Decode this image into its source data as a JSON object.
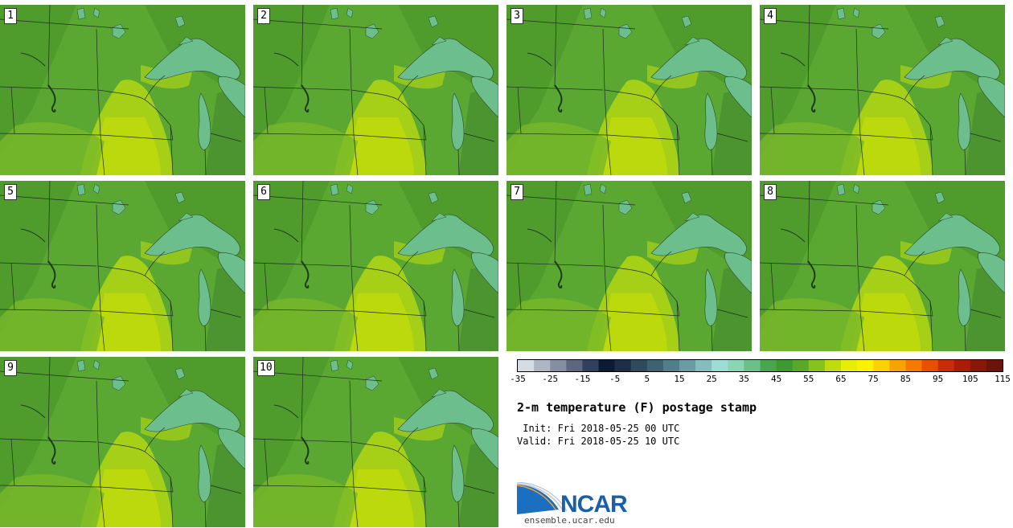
{
  "stamps": [
    {
      "label": "1"
    },
    {
      "label": "2"
    },
    {
      "label": "3"
    },
    {
      "label": "4"
    },
    {
      "label": "5"
    },
    {
      "label": "6"
    },
    {
      "label": "7"
    },
    {
      "label": "8"
    },
    {
      "label": "9"
    },
    {
      "label": "10"
    }
  ],
  "colorbar": {
    "colors": [
      "#d6dce4",
      "#aeb6c4",
      "#858fa2",
      "#5d6880",
      "#31405c",
      "#0d1a33",
      "#1d2f46",
      "#2e4a5c",
      "#3e6272",
      "#517e8a",
      "#6b9ca4",
      "#86bcbe",
      "#9edcd6",
      "#88d6b4",
      "#6cbf88",
      "#4aa64e",
      "#3d9a30",
      "#5aa82a",
      "#86c31e",
      "#bedc0e",
      "#e6ee08",
      "#fbf200",
      "#fbd200",
      "#f8a400",
      "#f47a00",
      "#e85000",
      "#c82c08",
      "#a81c08",
      "#8a1808",
      "#6a140a"
    ],
    "tick_labels": [
      "-35",
      "-25",
      "-15",
      "-5",
      "5",
      "15",
      "25",
      "35",
      "45",
      "55",
      "65",
      "75",
      "85",
      "95",
      "105",
      "115"
    ]
  },
  "title": "2-m temperature (F) postage stamp",
  "init_text": " Init: Fri 2018-05-25 00 UTC",
  "valid_text": "Valid: Fri 2018-05-25 10 UTC",
  "logo_text": "NCAR",
  "url_text": "ensemble.ucar.edu"
}
